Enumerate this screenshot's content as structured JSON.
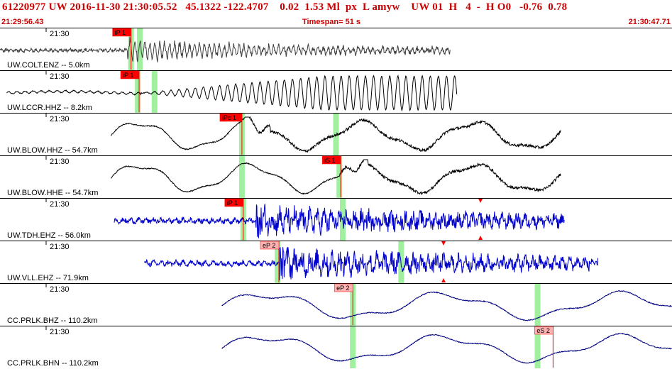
{
  "header": {
    "event_line": "61220977 UW 2016-11-30 21:30:05.52   45.1322 -122.4707    0.02  1.53 Ml  px  L amyw    UW 01  H   4  -  H O0   -0.76  0.78",
    "start_time": "21:29:56.43",
    "timespan": "Timespan=  51 s",
    "end_time": "21:30:47.71"
  },
  "colors": {
    "header_red": "#cc0000",
    "pick_red": "#ff0000",
    "pick_light": "#ffb0b0",
    "marker_green": "#a0f0a0",
    "blue_trace": "#0000cc"
  },
  "channels": [
    {
      "label": "UW.COLT.ENZ -- 5.0km",
      "time_tick": "21:30",
      "color": "#404040",
      "start": 0.0,
      "end": 0.67,
      "onset": 0.19,
      "style": "hf",
      "picks": [
        {
          "text": "iP 1",
          "pos": 0.195,
          "solid": true
        }
      ],
      "greens": [
        0.195,
        0.208
      ],
      "amp": 0.0
    },
    {
      "label": "UW.LCCR.HHZ -- 8.2km",
      "time_tick": "21:30",
      "color": "#000000",
      "start": 0.01,
      "end": 0.68,
      "onset": 0.21,
      "style": "sine",
      "picks": [
        {
          "text": "iP 1",
          "pos": 0.207,
          "solid": true
        }
      ],
      "greens": [
        0.205,
        0.23
      ],
      "amp": 0.0
    },
    {
      "label": "UW.BLOW.HHZ -- 54.7km",
      "time_tick": "21:30",
      "color": "#000000",
      "start": 0.165,
      "end": 0.835,
      "onset": 0.36,
      "style": "long",
      "picks": [
        {
          "text": "iPc 1",
          "pos": 0.36,
          "solid": true
        }
      ],
      "greens": [
        0.36,
        0.5
      ],
      "amp": 0.0
    },
    {
      "label": "UW.BLOW.HHE -- 54.7km",
      "time_tick": "21:30",
      "color": "#000000",
      "start": 0.165,
      "end": 0.835,
      "onset": 0.505,
      "style": "long",
      "picks": [
        {
          "text": "iS 1",
          "pos": 0.507,
          "solid": true
        }
      ],
      "greens": [
        0.36,
        0.505
      ],
      "amp": 0.0
    },
    {
      "label": "UW.TDH.EHZ -- 56.0km",
      "time_tick": "21:30",
      "color": "#0000cc",
      "start": 0.17,
      "end": 0.84,
      "onset": 0.385,
      "style": "noisy",
      "picks": [
        {
          "text": "iP 1",
          "pos": 0.362,
          "solid": true
        }
      ],
      "greens": [
        0.362,
        0.51
      ],
      "amp": 0.715
    },
    {
      "label": "UW.VLL.EHZ -- 71.9km",
      "time_tick": "21:30",
      "color": "#0000cc",
      "start": 0.215,
      "end": 0.89,
      "onset": 0.42,
      "style": "noisy",
      "picks": [
        {
          "text": "eP 2",
          "pos": 0.415,
          "solid": false
        }
      ],
      "greens": [
        0.413,
        0.597
      ],
      "amp": 0.66
    },
    {
      "label": "CC.PRLK.BHZ -- 110.2km",
      "time_tick": "21:30",
      "color": "#000080",
      "start": 0.33,
      "end": 1.0,
      "onset": 0.53,
      "style": "verylong",
      "picks": [
        {
          "text": "eP 2",
          "pos": 0.525,
          "solid": false
        }
      ],
      "greens": [
        0.525,
        0.8
      ],
      "amp": 0.0
    },
    {
      "label": "CC.PRLK.BHN -- 110.2km",
      "time_tick": "21:30",
      "color": "#000080",
      "start": 0.33,
      "end": 1.0,
      "onset": 0.85,
      "style": "verylong",
      "picks": [
        {
          "text": "eS 2",
          "pos": 0.823,
          "solid": false
        }
      ],
      "greens": [
        0.525,
        0.8
      ],
      "amp": 0.0
    }
  ]
}
